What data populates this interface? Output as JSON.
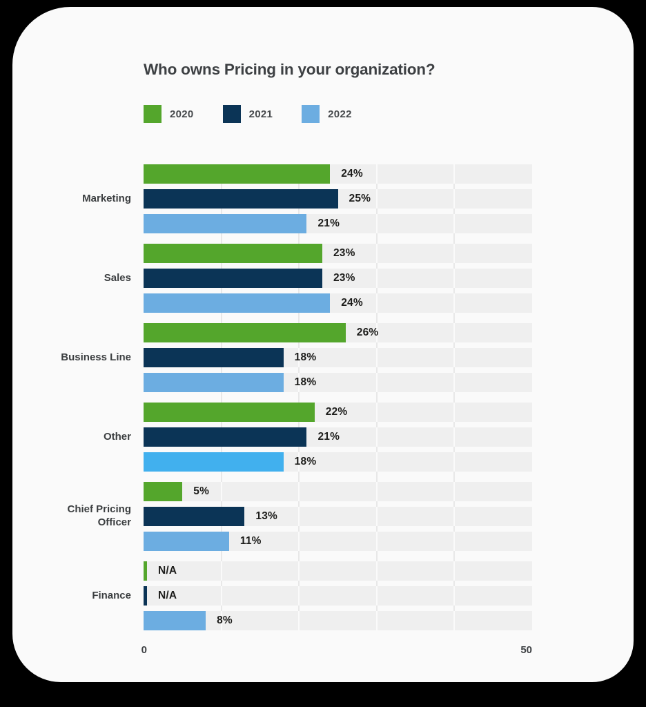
{
  "chart_data": {
    "type": "bar",
    "orientation": "horizontal",
    "title": "Who owns Pricing in your organization?",
    "legend_position": "top",
    "xlim": [
      0,
      50
    ],
    "x_tick_labels": [
      "0",
      "50"
    ],
    "gridline_values": [
      10,
      20,
      30,
      40
    ],
    "categories": [
      "Marketing",
      "Sales",
      "Business Line",
      "Other",
      "Chief Pricing Officer",
      "Finance"
    ],
    "series": [
      {
        "name": "2020",
        "color": "#54A62C",
        "values": [
          24,
          23,
          26,
          22,
          5,
          null
        ]
      },
      {
        "name": "2021",
        "color": "#0B3456",
        "values": [
          25,
          23,
          18,
          21,
          13,
          null
        ]
      },
      {
        "name": "2022",
        "color": "#6CADE1",
        "values": [
          21,
          24,
          18,
          18,
          11,
          8
        ]
      }
    ],
    "groups": [
      {
        "category": "Marketing",
        "bars": [
          {
            "series": "2020",
            "value": 24,
            "label": "24%"
          },
          {
            "series": "2021",
            "value": 25,
            "label": "25%"
          },
          {
            "series": "2022",
            "value": 21,
            "label": "21%"
          }
        ]
      },
      {
        "category": "Sales",
        "bars": [
          {
            "series": "2020",
            "value": 23,
            "label": "23%"
          },
          {
            "series": "2021",
            "value": 23,
            "label": "23%"
          },
          {
            "series": "2022",
            "value": 24,
            "label": "24%"
          }
        ]
      },
      {
        "category": "Business Line",
        "bars": [
          {
            "series": "2020",
            "value": 26,
            "label": "26%"
          },
          {
            "series": "2021",
            "value": 18,
            "label": "18%"
          },
          {
            "series": "2022",
            "value": 18,
            "label": "18%"
          }
        ]
      },
      {
        "category": "Other",
        "bars": [
          {
            "series": "2020",
            "value": 22,
            "label": "22%"
          },
          {
            "series": "2021",
            "value": 21,
            "label": "21%"
          },
          {
            "series": "2022",
            "value": 18,
            "label": "18%",
            "color": "#41B0EE"
          }
        ]
      },
      {
        "category": "Chief Pricing Officer",
        "bars": [
          {
            "series": "2020",
            "value": 5,
            "label": "5%"
          },
          {
            "series": "2021",
            "value": 13,
            "label": "13%"
          },
          {
            "series": "2022",
            "value": 11,
            "label": "11%"
          }
        ]
      },
      {
        "category": "Finance",
        "bars": [
          {
            "series": "2020",
            "value": null,
            "label": "N/A"
          },
          {
            "series": "2021",
            "value": null,
            "label": "N/A"
          },
          {
            "series": "2022",
            "value": 8,
            "label": "8%"
          }
        ]
      }
    ]
  },
  "style": {
    "page_background": "#000000",
    "card_background": "#FAFAFA",
    "track_color": "#EFEFEF",
    "gridline_color": "#E8E8E8",
    "title_color": "#3D4043",
    "value_text_color": "#1D1D1B"
  }
}
